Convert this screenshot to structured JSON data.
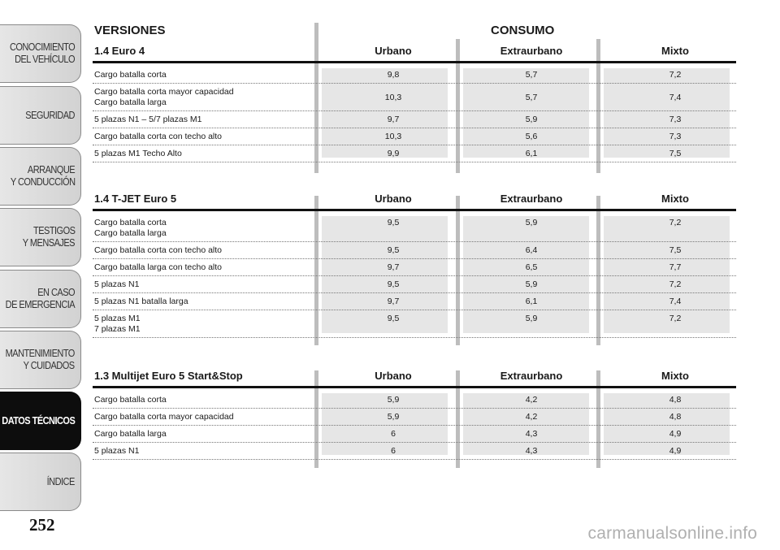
{
  "sidebar": {
    "tabs": [
      {
        "line1": "CONOCIMIENTO",
        "line2": "DEL VEHÍCULO",
        "active": false
      },
      {
        "line1": "SEGURIDAD",
        "line2": "",
        "active": false
      },
      {
        "line1": "ARRANQUE",
        "line2": "Y CONDUCCIÓN",
        "active": false
      },
      {
        "line1": "TESTIGOS",
        "line2": "Y MENSAJES",
        "active": false
      },
      {
        "line1": "EN CASO",
        "line2": "DE EMERGENCIA",
        "active": false
      },
      {
        "line1": "MANTENIMIENTO",
        "line2": "Y CUIDADOS",
        "active": false
      },
      {
        "line1": "DATOS TÉCNICOS",
        "line2": "",
        "active": true
      },
      {
        "line1": "ÍNDICE",
        "line2": "",
        "active": false
      }
    ]
  },
  "page_number": "252",
  "watermark": "carmanualsonline.info",
  "headings": {
    "versiones": "VERSIONES",
    "consumo": "CONSUMO"
  },
  "sections": [
    {
      "title": "1.4 Euro 4",
      "columns": [
        "Urbano",
        "Extraurbano",
        "Mixto"
      ],
      "rows": [
        {
          "label": [
            "Cargo batalla corta"
          ],
          "values": [
            "9,8",
            "5,7",
            "7,2"
          ]
        },
        {
          "label": [
            "Cargo batalla corta mayor capacidad",
            "Cargo batalla larga"
          ],
          "values": [
            "10,3",
            "5,7",
            "7,4"
          ]
        },
        {
          "label": [
            "5 plazas N1 – 5/7 plazas M1"
          ],
          "values": [
            "9,7",
            "5,9",
            "7,3"
          ]
        },
        {
          "label": [
            "Cargo batalla corta con techo alto"
          ],
          "values": [
            "10,3",
            "5,6",
            "7,3"
          ]
        },
        {
          "label": [
            "5 plazas M1 Techo Alto"
          ],
          "values": [
            "9,9",
            "6,1",
            "7,5"
          ]
        }
      ]
    },
    {
      "title": "1.4 T-JET Euro 5",
      "columns": [
        "Urbano",
        "Extraurbano",
        "Mixto"
      ],
      "rows": [
        {
          "label": [
            "Cargo batalla corta",
            "Cargo batalla larga"
          ],
          "values": [
            "9,5",
            "5,9",
            "7,2"
          ]
        },
        {
          "label": [
            "Cargo batalla corta con techo alto"
          ],
          "values": [
            "9,5",
            "6,4",
            "7,5"
          ]
        },
        {
          "label": [
            "Cargo batalla larga con techo alto"
          ],
          "values": [
            "9,7",
            "6,5",
            "7,7"
          ]
        },
        {
          "label": [
            "5 plazas N1"
          ],
          "values": [
            "9,5",
            "5,9",
            "7,2"
          ]
        },
        {
          "label": [
            "5 plazas N1 batalla larga"
          ],
          "values": [
            "9,7",
            "6,1",
            "7,4"
          ]
        },
        {
          "label": [
            "5 plazas M1",
            "7 plazas M1"
          ],
          "values": [
            "9,5",
            "5,9",
            "7,2"
          ]
        }
      ]
    },
    {
      "title": "1.3 Multijet Euro 5 Start&Stop",
      "columns": [
        "Urbano",
        "Extraurbano",
        "Mixto"
      ],
      "rows": [
        {
          "label": [
            "Cargo batalla corta"
          ],
          "values": [
            "5,9",
            "4,2",
            "4,8"
          ]
        },
        {
          "label": [
            "Cargo batalla corta mayor capacidad"
          ],
          "values": [
            "5,9",
            "4,2",
            "4,8"
          ]
        },
        {
          "label": [
            "Cargo batalla larga"
          ],
          "values": [
            "6",
            "4,3",
            "4,9"
          ]
        },
        {
          "label": [
            "5 plazas N1"
          ],
          "values": [
            "6",
            "4,3",
            "4,9"
          ]
        }
      ]
    }
  ]
}
